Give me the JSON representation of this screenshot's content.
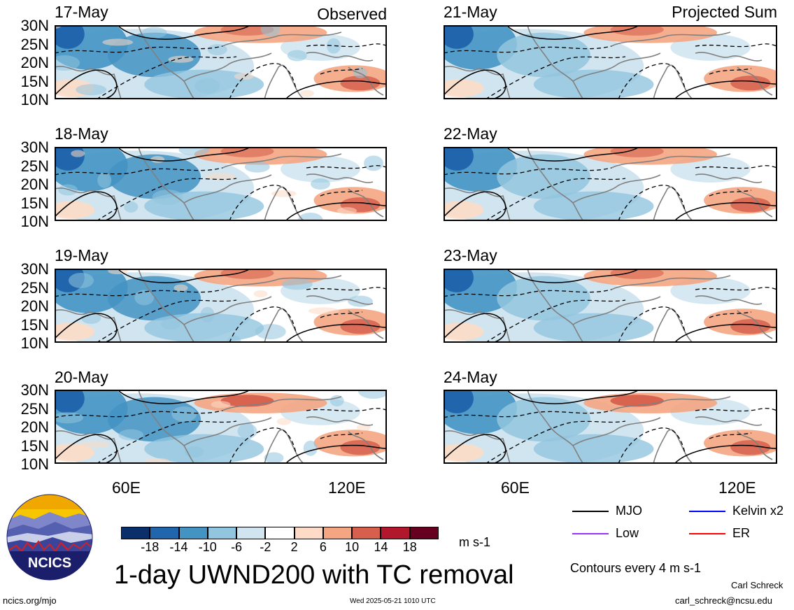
{
  "columns": {
    "left_title": "Observed",
    "right_title": "Projected Sum"
  },
  "panels_left": [
    {
      "date": "17-May"
    },
    {
      "date": "18-May"
    },
    {
      "date": "19-May"
    },
    {
      "date": "20-May"
    }
  ],
  "panels_right": [
    {
      "date": "21-May"
    },
    {
      "date": "22-May"
    },
    {
      "date": "23-May"
    },
    {
      "date": "24-May"
    }
  ],
  "lat_ticks": [
    "30N",
    "25N",
    "20N",
    "15N",
    "10N"
  ],
  "lon_ticks": [
    "60E",
    "120E"
  ],
  "colorbar": {
    "colors": [
      "#0b2f6b",
      "#2166ac",
      "#4393c3",
      "#92c5de",
      "#d1e5f0",
      "#ffffff",
      "#fddbc7",
      "#f4a582",
      "#d6604d",
      "#b2182b",
      "#67001f"
    ],
    "labels": [
      "-18",
      "-14",
      "-10",
      "-6",
      "-2",
      "2",
      "6",
      "10",
      "14",
      "18"
    ],
    "units": "m s-1"
  },
  "legend": [
    {
      "label": "MJO",
      "color": "#000000"
    },
    {
      "label": "Kelvin x2",
      "color": "#0000ff"
    },
    {
      "label": "Low",
      "color": "#9b30ff"
    },
    {
      "label": "ER",
      "color": "#ff0000"
    }
  ],
  "main_title": "1-day UWND200 with TC removal",
  "contour_note": "Contours every 4 m s-1",
  "logo_text": "NCICS",
  "footer": {
    "website": "ncics.org/mjo",
    "timestamp": "Wed 2025-05-21 1010 UTC",
    "author": "Carl Schreck",
    "email": "carl_schreck@ncsu.edu"
  }
}
